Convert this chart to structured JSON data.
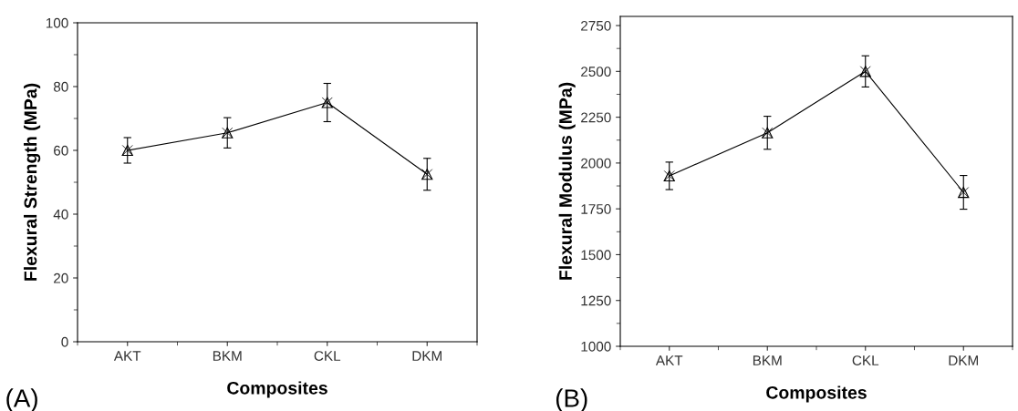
{
  "chart_data": [
    {
      "type": "line",
      "xlabel": "Composites",
      "ylabel": "Flexural Strength (MPa)",
      "categories": [
        "AKT",
        "BKM",
        "CKL",
        "DKM"
      ],
      "series": [
        {
          "color": "#000000",
          "values": [
            60,
            65.5,
            75,
            52.5
          ],
          "errors": [
            4,
            4.75,
            6,
            5
          ]
        }
      ],
      "ylim": [
        0,
        100
      ],
      "yticks": [
        0,
        20,
        40,
        60,
        80,
        100
      ],
      "marker": "triangle",
      "line_style": "solid",
      "grid": false,
      "legend": false,
      "annotations": [
        "(A)"
      ]
    },
    {
      "type": "line",
      "xlabel": "Composites",
      "ylabel": "Flexural Modulus (MPa)",
      "categories": [
        "AKT",
        "BKM",
        "CKL",
        "DKM"
      ],
      "series": [
        {
          "color": "#000000",
          "values": [
            1930,
            2165,
            2500,
            1840
          ],
          "errors": [
            75,
            90,
            85,
            92
          ]
        }
      ],
      "ylim": [
        1000,
        2800
      ],
      "yticks": [
        1000,
        1250,
        1500,
        1750,
        2000,
        2250,
        2500,
        2750
      ],
      "marker": "triangle",
      "line_style": "solid",
      "grid": false,
      "legend": false,
      "annotations": [
        "(B)"
      ]
    }
  ]
}
